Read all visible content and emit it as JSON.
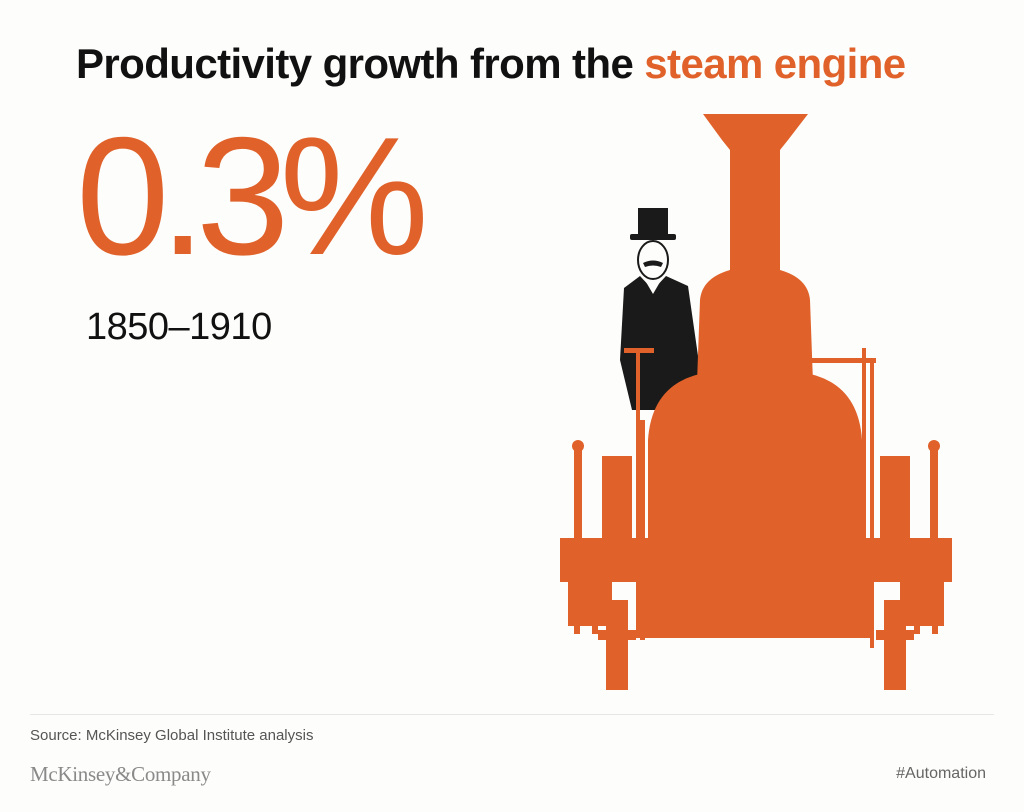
{
  "headline": {
    "prefix": "Productivity growth from the ",
    "highlight": "steam engine"
  },
  "stat": {
    "value": "0.3%",
    "period": "1850–1910"
  },
  "illustration": {
    "subject": "steam-locomotive-with-top-hat-man",
    "locomotive_color": "#e0622a",
    "figure_color": "#1a1a1a"
  },
  "footer": {
    "source": "Source: McKinsey Global Institute analysis",
    "brand": "McKinsey&Company",
    "hashtag": "#Automation"
  },
  "colors": {
    "accent": "#e0622a",
    "text": "#111111",
    "background": "#fdfdfb"
  }
}
